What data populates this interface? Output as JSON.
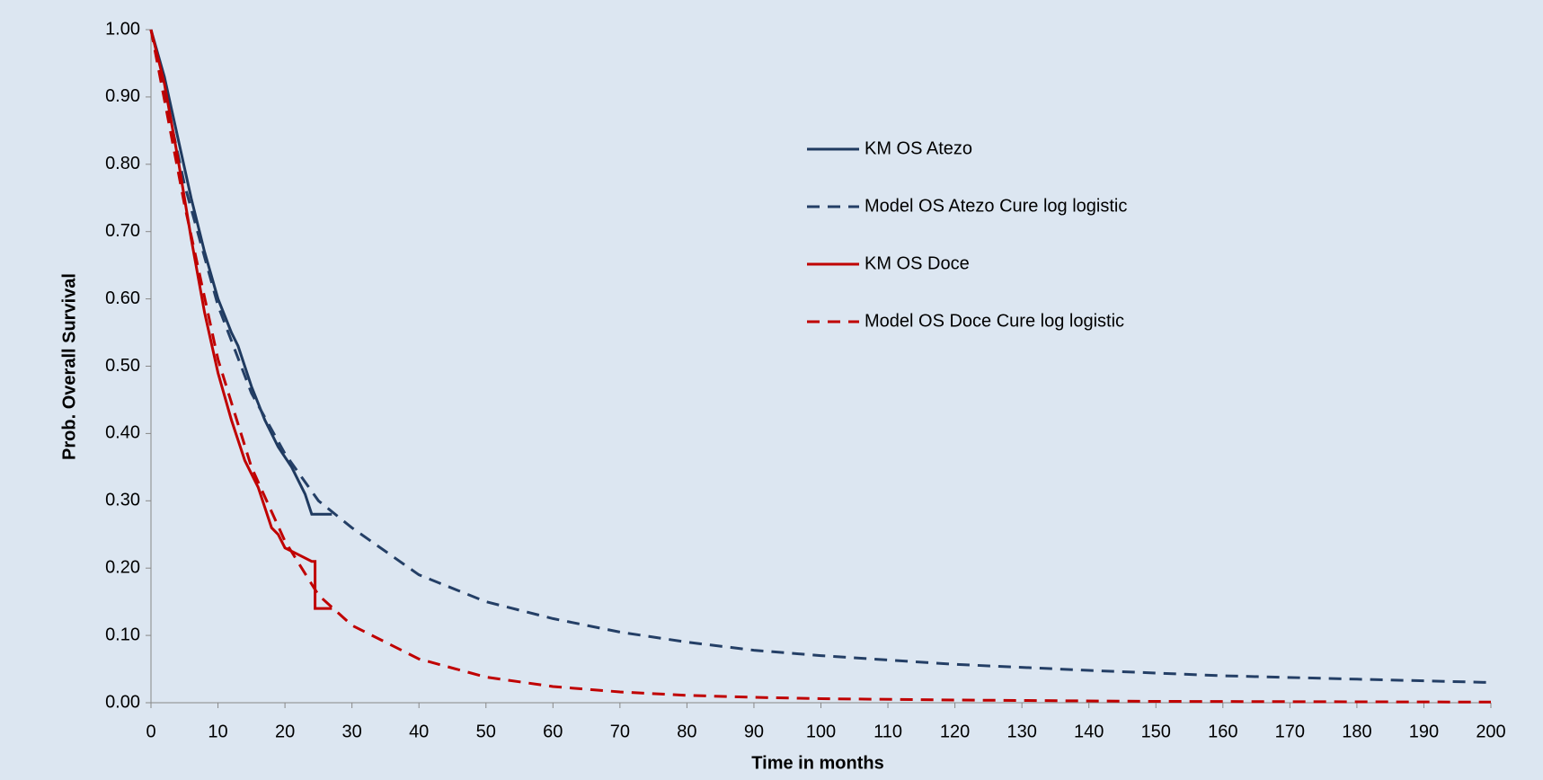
{
  "chart_data": {
    "type": "line",
    "x_label": "Time in months",
    "y_label": "Prob. Overall Survival",
    "xlim": [
      0,
      200
    ],
    "ylim": [
      0,
      1
    ],
    "xticks": [
      0,
      10,
      20,
      30,
      40,
      50,
      60,
      70,
      80,
      90,
      100,
      110,
      120,
      130,
      140,
      150,
      160,
      170,
      180,
      190,
      200
    ],
    "yticks": [
      {
        "value": 0,
        "label": "0.00"
      },
      {
        "value": 0.1,
        "label": "0.10"
      },
      {
        "value": 0.2,
        "label": "0.20"
      },
      {
        "value": 0.3,
        "label": "0.30"
      },
      {
        "value": 0.4,
        "label": "0.40"
      },
      {
        "value": 0.5,
        "label": "0.50"
      },
      {
        "value": 0.6,
        "label": "0.60"
      },
      {
        "value": 0.7,
        "label": "0.70"
      },
      {
        "value": 0.8,
        "label": "0.80"
      },
      {
        "value": 0.9,
        "label": "0.90"
      },
      {
        "value": 1,
        "label": "1.00"
      }
    ],
    "legend": "right",
    "series": [
      {
        "name": "KM OS Atezo",
        "color": "#1f3a60",
        "dash": false,
        "x": [
          0,
          2,
          4,
          6,
          8,
          10,
          12,
          13,
          15,
          17,
          19,
          21,
          22,
          23,
          24,
          27
        ],
        "values": [
          1,
          0.93,
          0.84,
          0.75,
          0.67,
          0.6,
          0.55,
          0.53,
          0.47,
          0.42,
          0.38,
          0.35,
          0.33,
          0.31,
          0.28,
          0.28
        ]
      },
      {
        "name": "Model OS Atezo Cure log logistic",
        "color": "#243f66",
        "dash": true,
        "x": [
          0,
          5,
          10,
          15,
          20,
          25,
          30,
          40,
          50,
          60,
          70,
          80,
          90,
          100,
          120,
          140,
          160,
          180,
          200
        ],
        "values": [
          1,
          0.77,
          0.59,
          0.46,
          0.37,
          0.3,
          0.26,
          0.19,
          0.15,
          0.125,
          0.105,
          0.09,
          0.078,
          0.07,
          0.057,
          0.048,
          0.04,
          0.035,
          0.03
        ]
      },
      {
        "name": "KM OS Doce",
        "color": "#c00000",
        "dash": false,
        "x": [
          0,
          2,
          4,
          6,
          8,
          10,
          12,
          14,
          16,
          18,
          19,
          20,
          22,
          24,
          24.5,
          24.5,
          27
        ],
        "values": [
          1,
          0.92,
          0.81,
          0.69,
          0.58,
          0.49,
          0.42,
          0.36,
          0.32,
          0.26,
          0.25,
          0.23,
          0.22,
          0.21,
          0.21,
          0.14,
          0.14
        ]
      },
      {
        "name": "Model OS Doce Cure log logistic",
        "color": "#c00000",
        "dash": true,
        "x": [
          0,
          5,
          10,
          15,
          20,
          25,
          30,
          40,
          50,
          60,
          70,
          80,
          90,
          100,
          120,
          150,
          200
        ],
        "values": [
          1,
          0.74,
          0.51,
          0.35,
          0.24,
          0.16,
          0.115,
          0.065,
          0.038,
          0.024,
          0.016,
          0.011,
          0.008,
          0.006,
          0.004,
          0.002,
          0.001
        ]
      }
    ]
  }
}
